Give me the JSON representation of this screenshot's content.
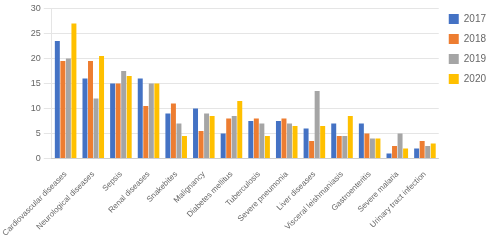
{
  "chart_data": {
    "type": "bar",
    "categories": [
      "Cardiovascular diseases",
      "Neurological diseases",
      "Sepsis",
      "Renal diseases",
      "Snakebites",
      "Malignancy",
      "Diabetes mellitus",
      "Tuberculosis",
      "Severe pneumonia",
      "Liver diseases",
      "Visceral leishmaniasis",
      "Gastroenteritis",
      "Severe malaria",
      "Urinary tract infection"
    ],
    "series": [
      {
        "name": "2017",
        "color": "#4472C4",
        "values": [
          23.5,
          16,
          15,
          16,
          9,
          10,
          5,
          7.5,
          7.5,
          6,
          7,
          7,
          1,
          2
        ]
      },
      {
        "name": "2018",
        "color": "#ED7D31",
        "values": [
          19.5,
          19.5,
          15,
          10.5,
          11,
          5.5,
          8,
          8,
          8,
          3.5,
          4.5,
          5,
          2.5,
          3.5
        ]
      },
      {
        "name": "2019",
        "color": "#A5A5A5",
        "values": [
          20,
          12,
          17.5,
          15,
          7,
          9,
          8.5,
          7,
          7,
          13.5,
          4.5,
          4,
          5,
          2.5
        ]
      },
      {
        "name": "2020",
        "color": "#FFC000",
        "values": [
          27,
          20.5,
          16.5,
          15,
          4.5,
          8.5,
          11.5,
          4.5,
          6.5,
          6.5,
          8.5,
          4,
          2,
          3
        ]
      }
    ],
    "ylim": [
      0,
      30
    ],
    "yticks": [
      0,
      5,
      10,
      15,
      20,
      25,
      30
    ],
    "grid": true,
    "legend": "right"
  }
}
